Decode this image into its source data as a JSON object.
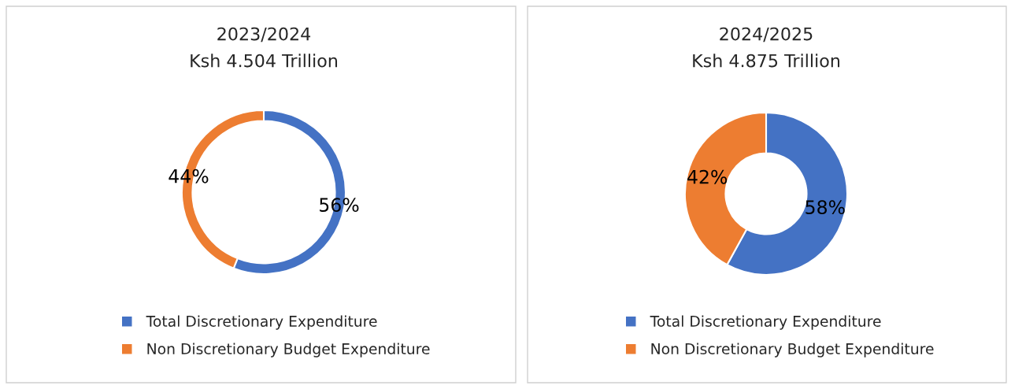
{
  "chart_data": [
    {
      "type": "donut",
      "title": "2023/2024",
      "subtitle": "Ksh 4.504 Trillion",
      "categories": [
        "Total Discretionary Expenditure",
        "Non Discretionary Budget Expenditure"
      ],
      "values": [
        56,
        44
      ],
      "colors": [
        "#4472c4",
        "#ed7d31"
      ],
      "value_labels": [
        "56%",
        "44%"
      ],
      "legend": "bottom"
    },
    {
      "type": "donut",
      "title": "2024/2025",
      "subtitle": "Ksh 4.875 Trillion",
      "categories": [
        "Total Discretionary Expenditure",
        "Non Discretionary Budget Expenditure"
      ],
      "values": [
        58,
        42
      ],
      "colors": [
        "#4472c4",
        "#ed7d31"
      ],
      "value_labels": [
        "58%",
        "42%"
      ],
      "legend": "bottom"
    }
  ]
}
